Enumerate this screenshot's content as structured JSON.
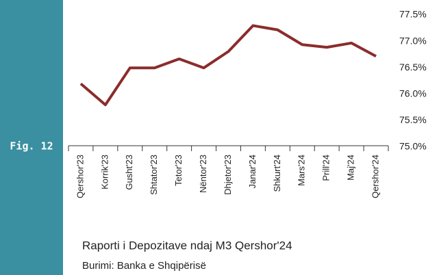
{
  "chart_data": {
    "type": "line",
    "figure_label": "Fig. 12",
    "title": "Raporti i Depozitave ndaj M3 Qershor'24",
    "source": "Burimi: Banka e Shqipërisë",
    "categories": [
      "Qershor'23",
      "Korrik'23",
      "Gusht'23",
      "Shtator'23",
      "Tetor'23",
      "Nëntor'23",
      "Dhjetor'23",
      "Janar'24",
      "Shkurt'24",
      "Mars'24",
      "Prill'24",
      "Maj'24",
      "Qershor'24"
    ],
    "values": [
      76.2,
      75.8,
      76.5,
      76.5,
      76.67,
      76.5,
      76.81,
      77.3,
      77.22,
      76.94,
      76.89,
      76.97,
      76.72
    ],
    "color": "#8b2c2c",
    "ylim": [
      75.0,
      77.5
    ],
    "yticks": [
      {
        "value": 75.0,
        "label": "75.0%"
      },
      {
        "value": 75.5,
        "label": "75.5%"
      },
      {
        "value": 76.0,
        "label": "76.0%"
      },
      {
        "value": 76.5,
        "label": "76.5%"
      },
      {
        "value": 77.0,
        "label": "77.0%"
      },
      {
        "value": 77.5,
        "label": "77.5%"
      }
    ],
    "y_axis_side": "right",
    "grid": false
  }
}
